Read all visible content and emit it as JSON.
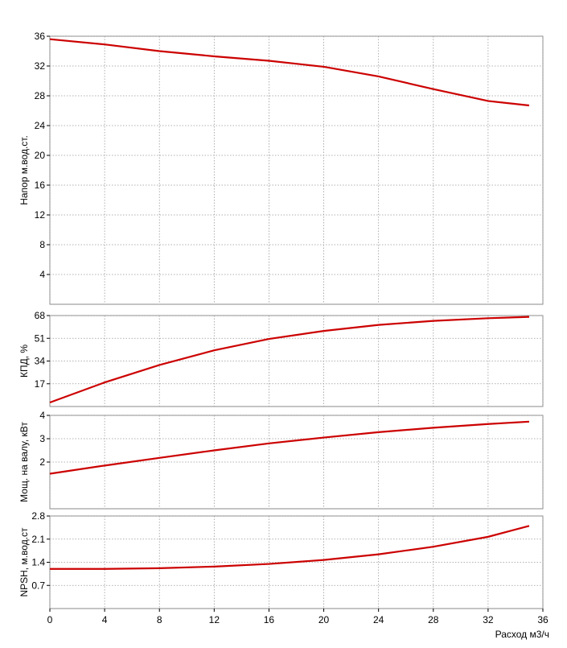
{
  "chart_data": [
    {
      "type": "line",
      "ylabel": "Напор м.вод.ст.",
      "x": [
        0,
        4,
        8,
        12,
        16,
        20,
        24,
        28,
        32,
        35
      ],
      "values": [
        35.6,
        34.9,
        34.0,
        33.3,
        32.7,
        31.9,
        30.6,
        28.9,
        27.3,
        26.7
      ],
      "color": "#cc0000",
      "ylim": [
        0,
        36
      ],
      "yticks": [
        4,
        8,
        12,
        16,
        20,
        24,
        28,
        32,
        36
      ],
      "grid": true
    },
    {
      "type": "line",
      "ylabel": "КПД, %",
      "x": [
        0,
        4,
        8,
        12,
        16,
        20,
        24,
        28,
        32,
        35
      ],
      "values": [
        3,
        18,
        31,
        42,
        50.5,
        56.5,
        61,
        64,
        66,
        67
      ],
      "color": "#cc0000",
      "ylim": [
        0,
        68
      ],
      "yticks": [
        17,
        34,
        51,
        68
      ],
      "grid": true
    },
    {
      "type": "line",
      "ylabel": "Мощ. на валу, кВт",
      "x": [
        0,
        4,
        8,
        12,
        16,
        20,
        24,
        28,
        32,
        35
      ],
      "values": [
        1.5,
        1.85,
        2.18,
        2.5,
        2.8,
        3.05,
        3.28,
        3.47,
        3.63,
        3.73
      ],
      "color": "#cc0000",
      "ylim": [
        0,
        4
      ],
      "yticks": [
        2,
        3,
        4
      ],
      "grid": true
    },
    {
      "type": "line",
      "ylabel": "NPSH, м.вод.ст",
      "xlabel": "Расход м3/ч",
      "x": [
        0,
        4,
        8,
        12,
        16,
        20,
        24,
        28,
        32,
        35
      ],
      "values": [
        1.2,
        1.2,
        1.22,
        1.27,
        1.35,
        1.47,
        1.64,
        1.87,
        2.17,
        2.5
      ],
      "color": "#cc0000",
      "ylim": [
        0,
        2.8
      ],
      "yticks": [
        0.7,
        1.4,
        2.1,
        2.8
      ],
      "xlim": [
        0,
        36
      ],
      "xticks": [
        0,
        4,
        8,
        12,
        16,
        20,
        24,
        28,
        32,
        36
      ],
      "grid": true
    }
  ]
}
